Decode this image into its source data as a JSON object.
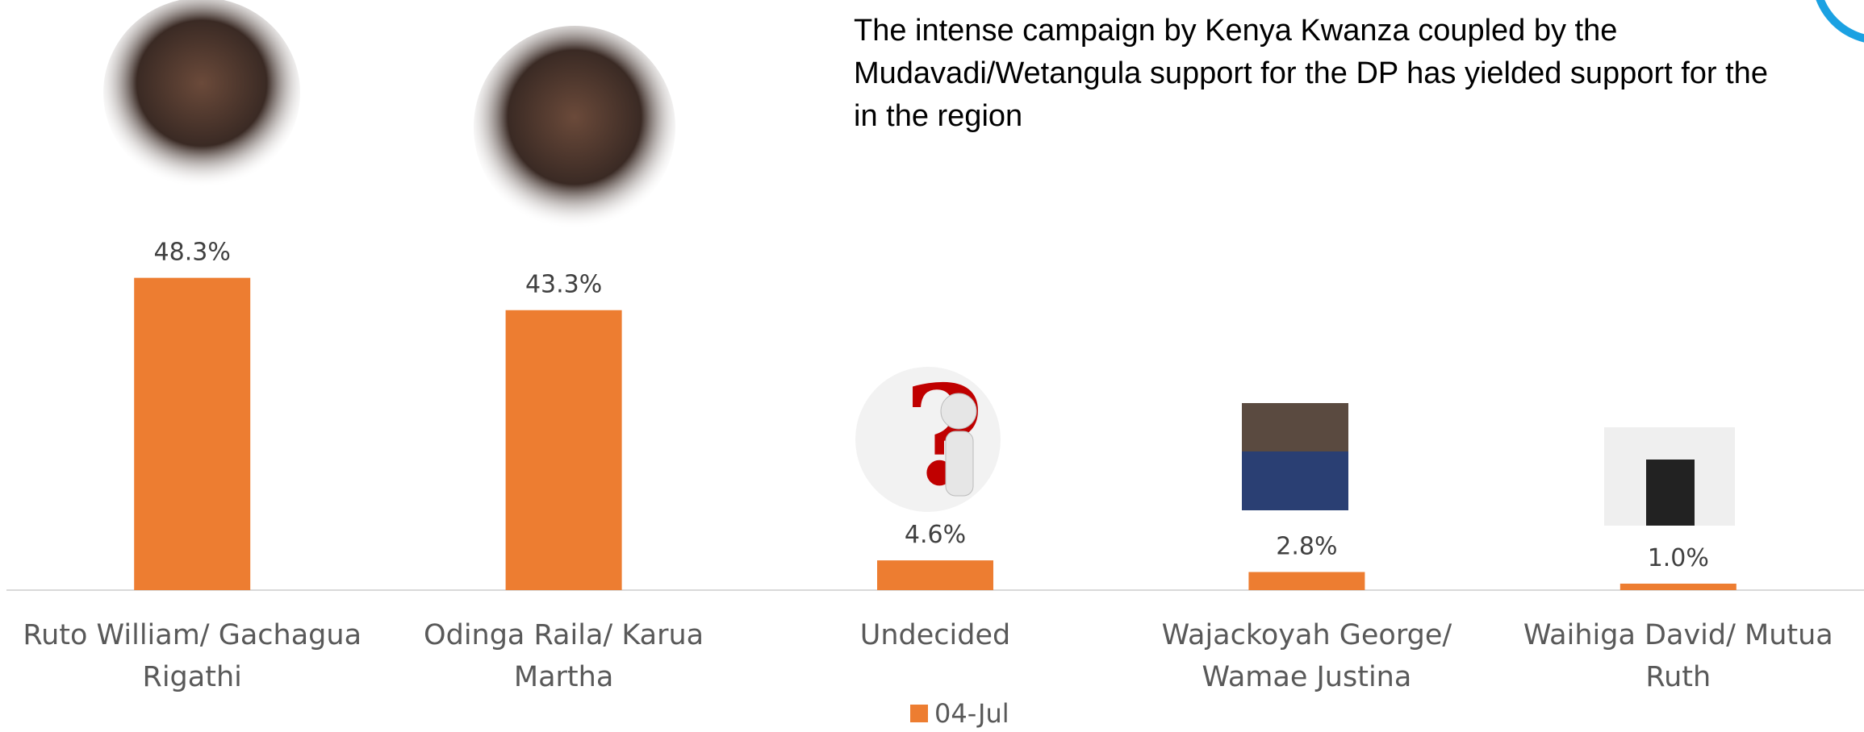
{
  "chart_data": {
    "type": "bar",
    "annotation_lines": [
      "The intense campaign  by Kenya Kwanza coupled by the",
      "Mudavadi/Wetangula support for the DP has yielded support for the",
      "in the region"
    ],
    "categories": [
      "Ruto William/ Gachagua Rigathi",
      "Odinga Raila/ Karua Martha",
      "Undecided",
      "Wajackoyah George/ Wamae Justina",
      "Waihiga David/ Mutua Ruth"
    ],
    "series": [
      {
        "name": "04-Jul",
        "color": "#ed7d31",
        "values": [
          48.3,
          43.3,
          4.6,
          2.8,
          1.0
        ],
        "value_labels": [
          "48.3%",
          "43.3%",
          "4.6%",
          "2.8%",
          "1.0%"
        ]
      }
    ],
    "legend": "bottom"
  }
}
